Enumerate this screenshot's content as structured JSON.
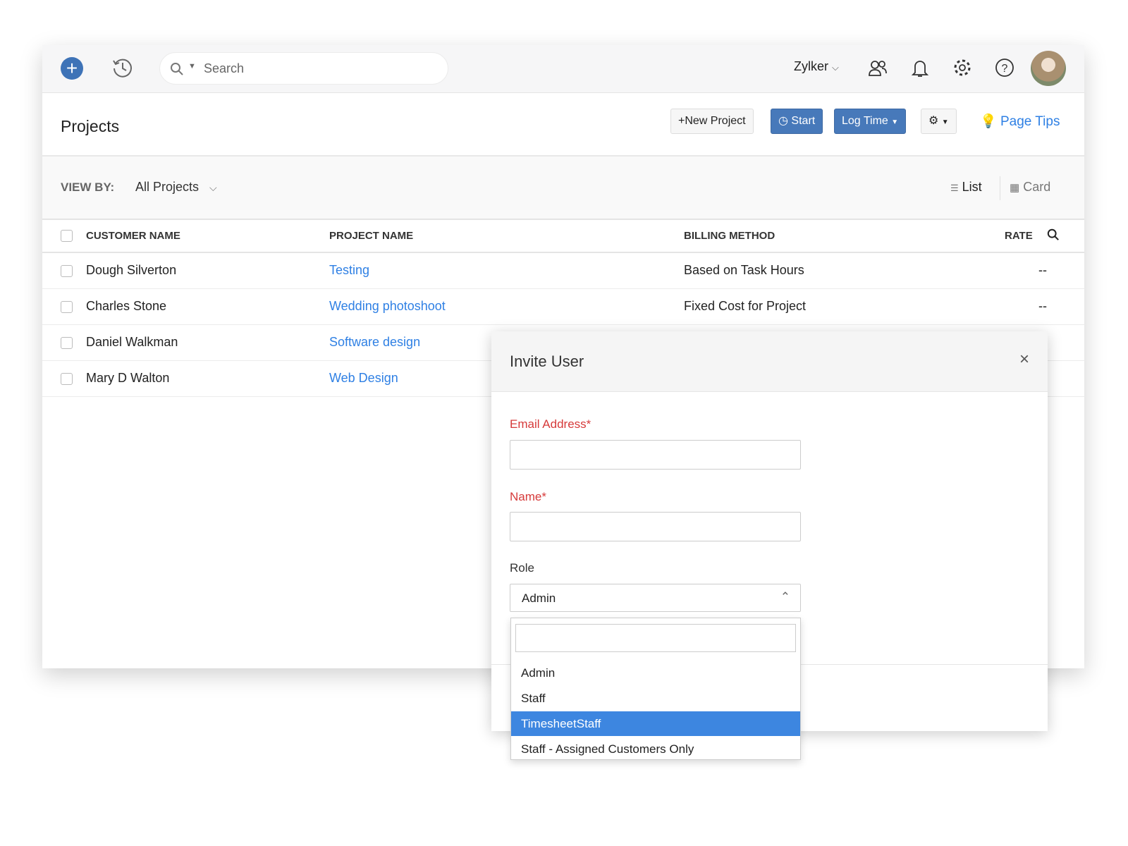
{
  "topbar": {
    "search_placeholder": "Search",
    "org": "Zylker"
  },
  "page": {
    "title": "Projects",
    "new_project": "New Project",
    "start": "Start",
    "log_time": "Log Time",
    "page_tips": "Page Tips"
  },
  "viewby": {
    "label": "VIEW BY:",
    "value": "All Projects",
    "list": "List",
    "card": "Card"
  },
  "table": {
    "headers": [
      "CUSTOMER NAME",
      "PROJECT NAME",
      "BILLING METHOD",
      "RATE"
    ],
    "rows": [
      {
        "customer": "Dough Silverton",
        "project": "Testing",
        "billing": "Based on Task Hours",
        "rate": "--"
      },
      {
        "customer": "Charles Stone",
        "project": "Wedding photoshoot",
        "billing": "Fixed Cost for Project",
        "rate": "--"
      },
      {
        "customer": "Daniel Walkman",
        "project": "Software design",
        "billing": "",
        "rate": ""
      },
      {
        "customer": "Mary D Walton",
        "project": "Web Design",
        "billing": "",
        "rate": ""
      }
    ]
  },
  "modal": {
    "title": "Invite User",
    "email_label": "Email Address",
    "name_label": "Name",
    "required_mark": "*",
    "role_label": "Role",
    "role_value": "Admin",
    "options": [
      "Admin",
      "Staff",
      "TimesheetStaff",
      "Staff - Assigned Customers Only"
    ],
    "highlighted": "TimesheetStaff"
  },
  "colors": {
    "primary": "#4779ba",
    "link": "#2f80e4",
    "required": "#d63a3a",
    "highlight": "#3d86e0"
  }
}
